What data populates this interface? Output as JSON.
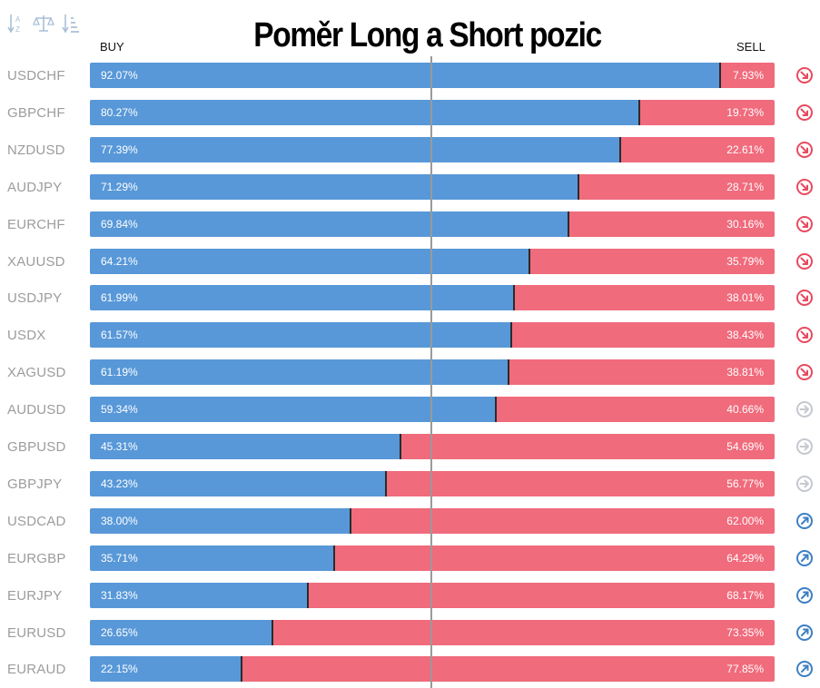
{
  "title": "Poměr Long a Short pozic",
  "header": {
    "buy_label": "BUY",
    "sell_label": "SELL"
  },
  "toolbar": {
    "icons": [
      "sort-alpha-icon",
      "balance-scale-icon",
      "sort-amount-icon"
    ]
  },
  "colors": {
    "buy": "#5898d8",
    "sell": "#f06b7c",
    "down": "#e84a5f",
    "neutral": "#c4c8d0",
    "up": "#3d7fc4"
  },
  "chart_data": {
    "type": "bar",
    "stacked": true,
    "orientation": "horizontal",
    "categories": [
      "USDCHF",
      "GBPCHF",
      "NZDUSD",
      "AUDJPY",
      "EURCHF",
      "XAUUSD",
      "USDJPY",
      "USDX",
      "XAGUSD",
      "AUDUSD",
      "GBPUSD",
      "GBPJPY",
      "USDCAD",
      "EURGBP",
      "EURJPY",
      "EURUSD",
      "EURAUD"
    ],
    "series": [
      {
        "name": "BUY",
        "values": [
          92.07,
          80.27,
          77.39,
          71.29,
          69.84,
          64.21,
          61.99,
          61.57,
          61.19,
          59.34,
          45.31,
          43.23,
          38.0,
          35.71,
          31.83,
          26.65,
          22.15
        ]
      },
      {
        "name": "SELL",
        "values": [
          7.93,
          19.73,
          22.61,
          28.71,
          30.16,
          35.79,
          38.01,
          38.43,
          38.81,
          40.66,
          54.69,
          56.77,
          62.0,
          64.29,
          68.17,
          73.35,
          77.85
        ]
      }
    ],
    "buy_labels": [
      "92.07%",
      "80.27%",
      "77.39%",
      "71.29%",
      "69.84%",
      "64.21%",
      "61.99%",
      "61.57%",
      "61.19%",
      "59.34%",
      "45.31%",
      "43.23%",
      "38.00%",
      "35.71%",
      "31.83%",
      "26.65%",
      "22.15%"
    ],
    "sell_labels": [
      "7.93%",
      "19.73%",
      "22.61%",
      "28.71%",
      "30.16%",
      "35.79%",
      "38.01%",
      "38.43%",
      "38.81%",
      "40.66%",
      "54.69%",
      "56.77%",
      "62.00%",
      "64.29%",
      "68.17%",
      "73.35%",
      "77.85%"
    ],
    "trend_icons": [
      "down",
      "down",
      "down",
      "down",
      "down",
      "down",
      "down",
      "down",
      "down",
      "neutral",
      "neutral",
      "neutral",
      "up",
      "up",
      "up",
      "up",
      "up"
    ],
    "xlim": [
      0,
      100
    ],
    "reference_line": 50
  }
}
